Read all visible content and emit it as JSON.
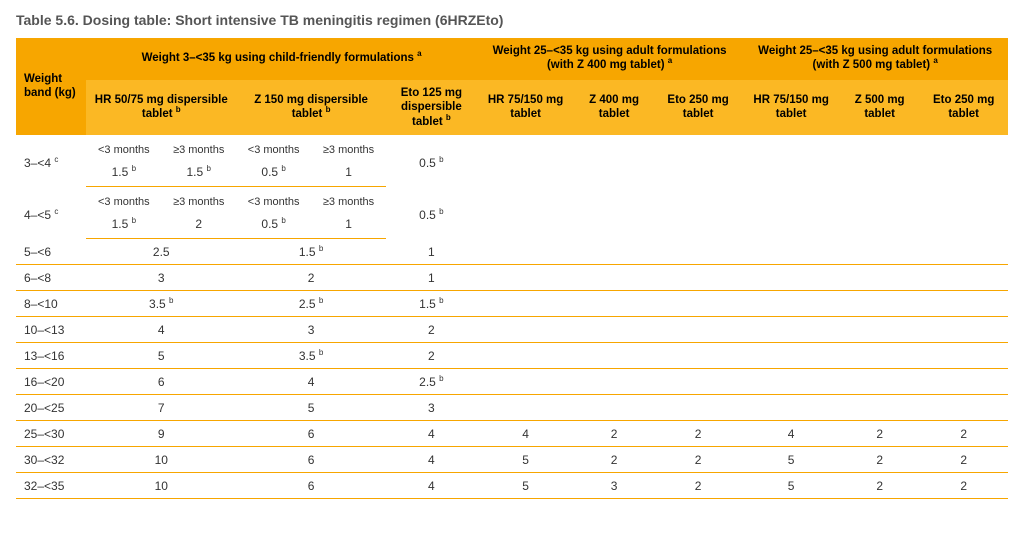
{
  "title": "Table 5.6. Dosing table: Short intensive TB meningitis regimen (6HRZEto)",
  "colors": {
    "header_bg": "#f7a600",
    "subheader_bg": "#fbb824",
    "rule": "#f7a600",
    "text": "#333333"
  },
  "header": {
    "weight_band": "Weight band (kg)",
    "group1": "Weight 3–<35 kg using child-friendly formulations",
    "group1_sup": "a",
    "group2": "Weight 25–<35 kg using adult formulations (with Z 400 mg tablet)",
    "group2_sup": "a",
    "group3": "Weight 25–<35 kg using adult formulations (with Z 500 mg tablet)",
    "group3_sup": "a",
    "c1a": "HR 50/75 mg dispersible tablet",
    "c1a_sup": "b",
    "c1b": "Z 150 mg dispersible tablet",
    "c1b_sup": "b",
    "c1c": "Eto 125 mg dispersible tablet",
    "c1c_sup": "b",
    "c2a": "HR 75/150 mg tablet",
    "c2b": "Z 400 mg tablet",
    "c2c": "Eto 250 mg tablet",
    "c3a": "HR 75/150 mg tablet",
    "c3b": "Z 500 mg tablet",
    "c3c": "Eto 250 mg tablet",
    "lt3m": "<3 months",
    "ge3m": "≥3 months"
  },
  "rows_split": [
    {
      "wb": "3–<4",
      "wb_sup": "c",
      "hr_lt": "1.5",
      "hr_lt_sup": "b",
      "hr_ge": "1.5",
      "hr_ge_sup": "b",
      "z_lt": "0.5",
      "z_lt_sup": "b",
      "z_ge": "1",
      "eto": "0.5",
      "eto_sup": "b"
    },
    {
      "wb": "4–<5",
      "wb_sup": "c",
      "hr_lt": "1.5",
      "hr_lt_sup": "b",
      "hr_ge": "2",
      "z_lt": "0.5",
      "z_lt_sup": "b",
      "z_ge": "1",
      "eto": "0.5",
      "eto_sup": "b"
    }
  ],
  "rows": [
    {
      "wb": "5–<6",
      "hr": "2.5",
      "z": "1.5",
      "z_sup": "b",
      "eto": "1"
    },
    {
      "wb": "6–<8",
      "hr": "3",
      "z": "2",
      "eto": "1"
    },
    {
      "wb": "8–<10",
      "hr": "3.5",
      "hr_sup": "b",
      "z": "2.5",
      "z_sup": "b",
      "eto": "1.5",
      "eto_sup": "b"
    },
    {
      "wb": "10–<13",
      "hr": "4",
      "z": "3",
      "eto": "2"
    },
    {
      "wb": "13–<16",
      "hr": "5",
      "z": "3.5",
      "z_sup": "b",
      "eto": "2"
    },
    {
      "wb": "16–<20",
      "hr": "6",
      "z": "4",
      "eto": "2.5",
      "eto_sup": "b"
    },
    {
      "wb": "20–<25",
      "hr": "7",
      "z": "5",
      "eto": "3"
    },
    {
      "wb": "25–<30",
      "hr": "9",
      "z": "6",
      "eto": "4",
      "a_hr": "4",
      "a_z4": "2",
      "a_eto4": "2",
      "a_hr5": "4",
      "a_z5": "2",
      "a_eto5": "2"
    },
    {
      "wb": "30–<32",
      "hr": "10",
      "z": "6",
      "eto": "4",
      "a_hr": "5",
      "a_z4": "2",
      "a_eto4": "2",
      "a_hr5": "5",
      "a_z5": "2",
      "a_eto5": "2"
    },
    {
      "wb": "32–<35",
      "hr": "10",
      "z": "6",
      "eto": "4",
      "a_hr": "5",
      "a_z4": "3",
      "a_eto4": "2",
      "a_hr5": "5",
      "a_z5": "2",
      "a_eto5": "2"
    }
  ]
}
